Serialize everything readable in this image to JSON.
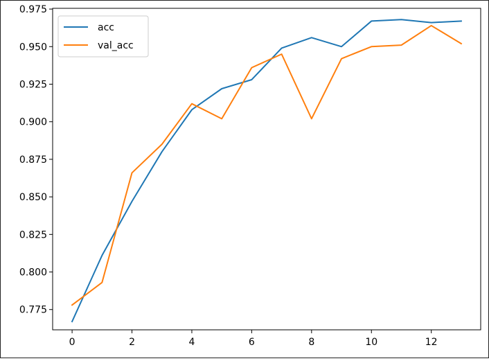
{
  "chart_data": {
    "type": "line",
    "title": "",
    "xlabel": "",
    "ylabel": "",
    "x": [
      0,
      1,
      2,
      3,
      4,
      5,
      6,
      7,
      8,
      9,
      10,
      11,
      12,
      13
    ],
    "xlim": [
      -0.65,
      13.65
    ],
    "ylim": [
      0.7615,
      0.9755
    ],
    "xticks": [
      0,
      2,
      4,
      6,
      8,
      10,
      12
    ],
    "yticks": [
      0.775,
      0.8,
      0.825,
      0.85,
      0.875,
      0.9,
      0.925,
      0.95,
      0.975
    ],
    "ytick_labels": [
      "0.775",
      "0.800",
      "0.825",
      "0.850",
      "0.875",
      "0.900",
      "0.925",
      "0.950",
      "0.975"
    ],
    "grid": false,
    "legend": "upper left",
    "series": [
      {
        "name": "acc",
        "color": "#1f77b4",
        "values": [
          0.767,
          0.811,
          0.847,
          0.88,
          0.908,
          0.922,
          0.928,
          0.949,
          0.956,
          0.95,
          0.967,
          0.968,
          0.966,
          0.967
        ]
      },
      {
        "name": "val_acc",
        "color": "#ff7f0e",
        "values": [
          0.778,
          0.793,
          0.866,
          0.885,
          0.912,
          0.902,
          0.936,
          0.945,
          0.902,
          0.942,
          0.95,
          0.951,
          0.964,
          0.952
        ]
      }
    ]
  }
}
